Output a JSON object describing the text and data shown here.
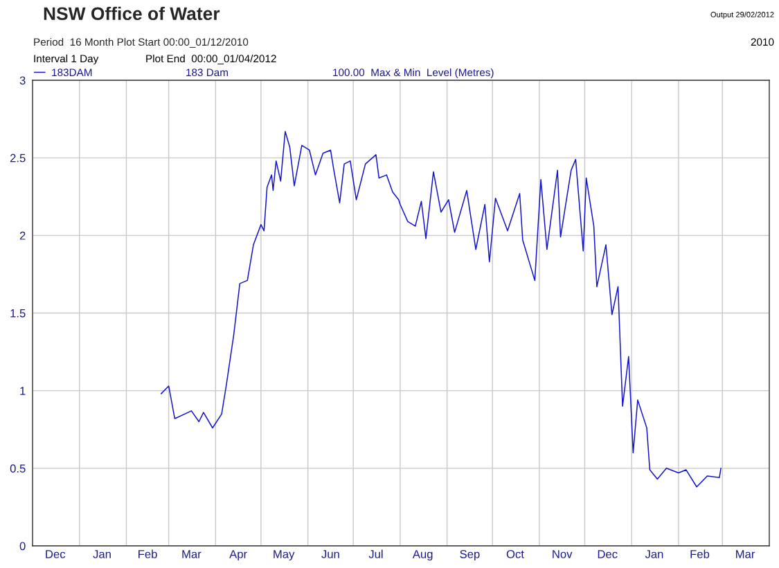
{
  "chart_data": {
    "type": "line",
    "title": "NSW Office of Water",
    "subtitle": "Period  16 Month Plot Start 00:00_01/12/2010",
    "annotations": [
      "Interval 1 Day",
      "Plot End  00:00_01/04/2012",
      "2010",
      "Output 29/02/2012",
      "183 Dam",
      "100.00  Max & Min  Level (Metres)"
    ],
    "series": [
      {
        "name": "183DAM",
        "color": "#1414c8",
        "x": [
          "2011-02-24",
          "2011-03-01",
          "2011-03-05",
          "2011-03-16",
          "2011-03-21",
          "2011-03-24",
          "2011-03-30",
          "2011-04-05",
          "2011-04-08",
          "2011-04-13",
          "2011-04-17",
          "2011-04-22",
          "2011-04-26",
          "2011-05-01",
          "2011-05-03",
          "2011-05-05",
          "2011-05-08",
          "2011-05-09",
          "2011-05-11",
          "2011-05-14",
          "2011-05-17",
          "2011-05-20",
          "2011-05-23",
          "2011-05-28",
          "2011-06-02",
          "2011-06-06",
          "2011-06-11",
          "2011-06-16",
          "2011-06-18",
          "2011-06-22",
          "2011-06-25",
          "2011-06-29",
          "2011-07-03",
          "2011-07-09",
          "2011-07-16",
          "2011-07-18",
          "2011-07-23",
          "2011-07-27",
          "2011-07-31",
          "2011-08-01",
          "2011-08-06",
          "2011-08-11",
          "2011-08-15",
          "2011-08-18",
          "2011-08-23",
          "2011-08-28",
          "2011-09-02",
          "2011-09-06",
          "2011-09-14",
          "2011-09-20",
          "2011-09-26",
          "2011-09-29",
          "2011-10-03",
          "2011-10-11",
          "2011-10-19",
          "2011-10-21",
          "2011-10-29",
          "2011-11-02",
          "2011-11-06",
          "2011-11-13",
          "2011-11-15",
          "2011-11-22",
          "2011-11-25",
          "2011-11-30",
          "2011-12-02",
          "2011-12-07",
          "2011-12-09",
          "2011-12-15",
          "2011-12-19",
          "2011-12-23",
          "2011-12-26",
          "2011-12-30",
          "2012-01-02",
          "2012-01-05",
          "2012-01-11",
          "2012-01-13",
          "2012-01-18",
          "2012-01-24",
          "2012-02-01",
          "2012-02-06",
          "2012-02-13",
          "2012-02-20",
          "2012-02-28",
          "2012-02-29"
        ],
        "values": [
          0.98,
          1.03,
          0.82,
          0.87,
          0.8,
          0.86,
          0.76,
          0.85,
          1.03,
          1.36,
          1.69,
          1.71,
          1.94,
          2.07,
          2.03,
          2.31,
          2.39,
          2.29,
          2.48,
          2.35,
          2.67,
          2.57,
          2.32,
          2.58,
          2.55,
          2.39,
          2.53,
          2.55,
          2.43,
          2.21,
          2.46,
          2.48,
          2.23,
          2.46,
          2.52,
          2.37,
          2.39,
          2.28,
          2.23,
          2.2,
          2.09,
          2.06,
          2.22,
          1.98,
          2.41,
          2.15,
          2.23,
          2.02,
          2.29,
          1.91,
          2.2,
          1.83,
          2.24,
          2.03,
          2.27,
          1.97,
          1.71,
          2.36,
          1.91,
          2.42,
          1.99,
          2.42,
          2.49,
          1.9,
          2.37,
          2.06,
          1.67,
          1.94,
          1.49,
          1.67,
          0.9,
          1.22,
          0.6,
          0.94,
          0.76,
          0.49,
          0.43,
          0.5,
          0.47,
          0.49,
          0.38,
          0.45,
          0.44,
          0.5
        ]
      }
    ],
    "xlim": [
      "2010-12-01",
      "2012-04-01"
    ],
    "xticks": [
      {
        "value": "2010-12-01",
        "label": null
      },
      {
        "value": "2011-01-01",
        "label": null
      },
      {
        "value": "2011-02-01",
        "label": null
      },
      {
        "value": "2011-03-01",
        "label": null
      },
      {
        "value": "2011-04-01",
        "label": null
      },
      {
        "value": "2011-05-01",
        "label": null
      },
      {
        "value": "2011-06-01",
        "label": null
      },
      {
        "value": "2011-07-01",
        "label": null
      },
      {
        "value": "2011-08-01",
        "label": null
      },
      {
        "value": "2011-09-01",
        "label": null
      },
      {
        "value": "2011-10-01",
        "label": null
      },
      {
        "value": "2011-11-01",
        "label": null
      },
      {
        "value": "2011-12-01",
        "label": null
      },
      {
        "value": "2012-01-01",
        "label": null
      },
      {
        "value": "2012-02-01",
        "label": null
      },
      {
        "value": "2012-03-01",
        "label": null
      },
      {
        "value": "2012-04-01",
        "label": null
      },
      {
        "value": "2010-12-16",
        "label": "Dec"
      },
      {
        "value": "2011-01-16",
        "label": "Jan"
      },
      {
        "value": "2011-02-15",
        "label": "Feb"
      },
      {
        "value": "2011-03-16",
        "label": "Mar"
      },
      {
        "value": "2011-04-16",
        "label": "Apr"
      },
      {
        "value": "2011-05-16",
        "label": "May"
      },
      {
        "value": "2011-06-16",
        "label": "Jun"
      },
      {
        "value": "2011-07-16",
        "label": "Jul"
      },
      {
        "value": "2011-08-16",
        "label": "Aug"
      },
      {
        "value": "2011-09-16",
        "label": "Sep"
      },
      {
        "value": "2011-10-16",
        "label": "Oct"
      },
      {
        "value": "2011-11-16",
        "label": "Nov"
      },
      {
        "value": "2011-12-16",
        "label": "Dec"
      },
      {
        "value": "2012-01-16",
        "label": "Jan"
      },
      {
        "value": "2012-02-15",
        "label": "Feb"
      },
      {
        "value": "2012-03-16",
        "label": "Mar"
      }
    ],
    "ylim": [
      0,
      3
    ],
    "yticks": [
      0,
      0.5,
      1,
      1.5,
      2,
      2.5,
      3
    ],
    "grid": true,
    "legend": "top left",
    "line_style": "solid",
    "marker": "none"
  }
}
